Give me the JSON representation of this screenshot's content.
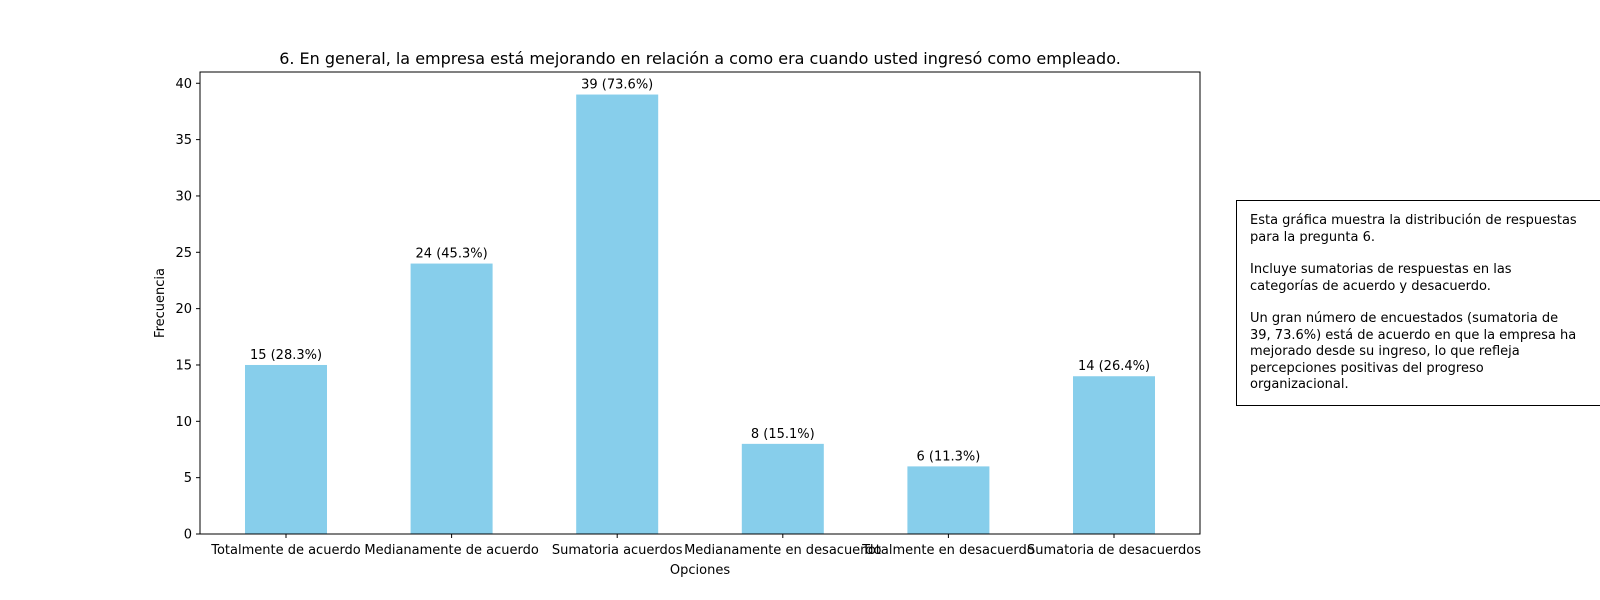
{
  "chart_data": {
    "type": "bar",
    "title": "6. En general, la empresa está mejorando en relación a como era cuando usted ingresó como empleado.",
    "xlabel": "Opciones",
    "ylabel": "Frecuencia",
    "categories": [
      "Totalmente de acuerdo",
      "Medianamente de acuerdo",
      "Sumatoria acuerdos",
      "Medianamente en desacuerdo",
      "Totalmente en desacuerdo",
      "Sumatoria de desacuerdos"
    ],
    "values": [
      15,
      24,
      39,
      8,
      6,
      14
    ],
    "data_labels": [
      "15 (28.3%)",
      "24 (45.3%)",
      "39 (73.6%)",
      "8 (15.1%)",
      "6 (11.3%)",
      "14 (26.4%)"
    ],
    "ylim": [
      0,
      41
    ],
    "yticks": [
      0,
      5,
      10,
      15,
      20,
      25,
      30,
      35,
      40
    ],
    "grid": false,
    "bar_color": "#87CEEB"
  },
  "note": {
    "paragraphs": [
      "Esta gráfica muestra la distribución de respuestas\npara la pregunta 6.",
      "Incluye sumatorias de respuestas en las\ncategorías de acuerdo y desacuerdo.",
      "Un gran número de encuestados (sumatoria de\n39, 73.6%) está de acuerdo en que la empresa ha\nmejorado desde su ingreso, lo que refleja\npercepciones positivas del progreso\norganizacional."
    ]
  }
}
